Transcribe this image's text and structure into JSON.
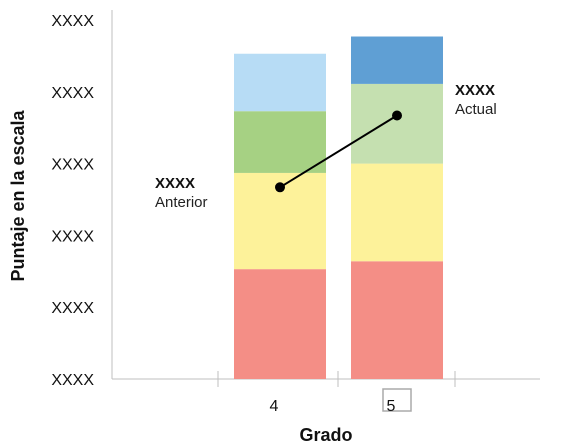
{
  "chart_data": {
    "type": "bar",
    "subtype": "stacked-range-bands-with-line",
    "title": "",
    "xlabel": "Grado",
    "ylabel": "Puntaje en la escala",
    "y_tick_labels": [
      "XXXX",
      "XXXX",
      "XXXX",
      "XXXX",
      "XXXX",
      "XXXX"
    ],
    "ylim": [
      0,
      5
    ],
    "categories": [
      "4",
      "5"
    ],
    "highlighted_category": "5",
    "bands": [
      {
        "category": "4",
        "segments": [
          {
            "from": 0.0,
            "to": 1.53,
            "color": "#f48e86"
          },
          {
            "from": 1.53,
            "to": 2.87,
            "color": "#fdf29a"
          },
          {
            "from": 2.87,
            "to": 3.73,
            "color": "#a6d183"
          },
          {
            "from": 3.73,
            "to": 4.53,
            "color": "#b7dcf5"
          }
        ]
      },
      {
        "category": "5",
        "segments": [
          {
            "from": 0.0,
            "to": 1.64,
            "color": "#f48e86"
          },
          {
            "from": 1.64,
            "to": 3.0,
            "color": "#fdf29a"
          },
          {
            "from": 3.0,
            "to": 4.11,
            "color": "#c5e0b0"
          },
          {
            "from": 4.11,
            "to": 4.77,
            "color": "#5f9fd4"
          }
        ]
      }
    ],
    "series": [
      {
        "points": [
          {
            "category": "4",
            "y": 2.67,
            "value_label": "XXXX",
            "label": "Anterior"
          },
          {
            "category": "5",
            "y": 3.67,
            "value_label": "XXXX",
            "label": "Actual"
          }
        ],
        "color": "#000000"
      }
    ],
    "grid": false,
    "legend": "none"
  }
}
